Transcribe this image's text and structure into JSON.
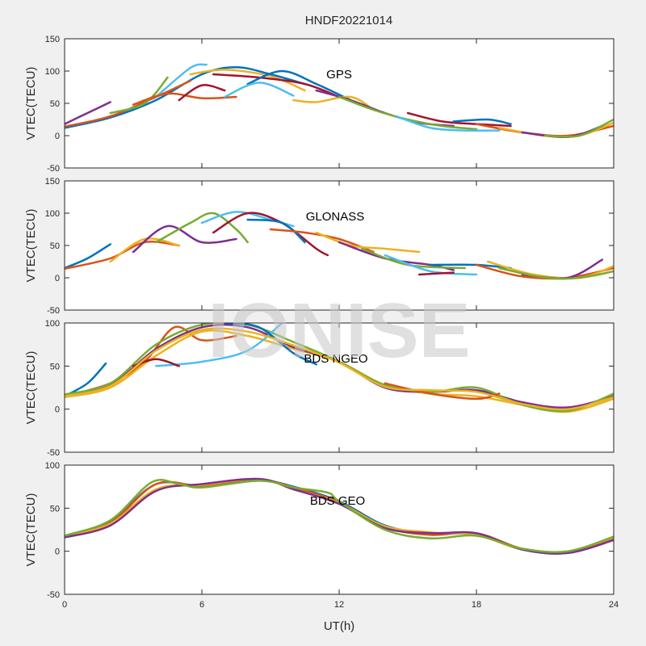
{
  "chart_data": {
    "title": "HNDF20221014",
    "xlabel": "UT(h)",
    "watermark": "IONISE",
    "colors": [
      "#0072bd",
      "#d95319",
      "#edb120",
      "#7e2f8e",
      "#77ac30",
      "#4dbeee",
      "#a2142f"
    ],
    "panels": [
      {
        "type": "line",
        "annotation": "GPS",
        "ylabel": "VTEC(TECU)",
        "xlim": [
          0,
          24
        ],
        "ylim": [
          -50,
          150
        ],
        "xticks": [
          0,
          6,
          12,
          18,
          24
        ],
        "yticks": [
          -50,
          0,
          50,
          100,
          150
        ],
        "series": [
          {
            "x": [
              0,
              2,
              4,
              6,
              7.5,
              9,
              10.5
            ],
            "y": [
              12,
              28,
              55,
              95,
              106,
              95,
              80
            ]
          },
          {
            "x": [
              0,
              2,
              4,
              5.5
            ],
            "y": [
              14,
              30,
              60,
              85
            ]
          },
          {
            "x": [
              5.5,
              7,
              9,
              10.5
            ],
            "y": [
              95,
              102,
              92,
              70
            ]
          },
          {
            "x": [
              0,
              1,
              2
            ],
            "y": [
              18,
              35,
              52
            ]
          },
          {
            "x": [
              2,
              3.5,
              4.5
            ],
            "y": [
              35,
              50,
              90
            ]
          },
          {
            "x": [
              4,
              5.5,
              6.2
            ],
            "y": [
              60,
              105,
              110
            ]
          },
          {
            "x": [
              6.5,
              8.5,
              10.5,
              12
            ],
            "y": [
              95,
              90,
              80,
              60
            ]
          },
          {
            "x": [
              8,
              9.5,
              11,
              12.5
            ],
            "y": [
              80,
              100,
              80,
              55
            ]
          },
          {
            "x": [
              3,
              4.5,
              6,
              7.5
            ],
            "y": [
              48,
              65,
              58,
              60
            ]
          },
          {
            "x": [
              10,
              11,
              12.5,
              13.5
            ],
            "y": [
              55,
              52,
              60,
              40
            ]
          },
          {
            "x": [
              11,
              12.5,
              14,
              15.5,
              17
            ],
            "y": [
              70,
              55,
              35,
              20,
              15
            ]
          },
          {
            "x": [
              12,
              13.5,
              15,
              16.5,
              18
            ],
            "y": [
              60,
              40,
              25,
              15,
              10
            ]
          },
          {
            "x": [
              14.5,
              16,
              17.5,
              19
            ],
            "y": [
              30,
              12,
              8,
              8
            ]
          },
          {
            "x": [
              15,
              16.5,
              18,
              19.5
            ],
            "y": [
              35,
              22,
              18,
              15
            ]
          },
          {
            "x": [
              17,
              18.5,
              19.5
            ],
            "y": [
              22,
              25,
              18
            ]
          },
          {
            "x": [
              18,
              20,
              22,
              24
            ],
            "y": [
              18,
              5,
              0,
              15
            ]
          },
          {
            "x": [
              19,
              21,
              22.5,
              24
            ],
            "y": [
              12,
              0,
              0,
              20
            ]
          },
          {
            "x": [
              20,
              22,
              23.5
            ],
            "y": [
              5,
              -2,
              15
            ]
          },
          {
            "x": [
              21,
              22.5,
              24
            ],
            "y": [
              0,
              0,
              25
            ]
          },
          {
            "x": [
              7,
              8.5,
              10
            ],
            "y": [
              60,
              82,
              62
            ]
          },
          {
            "x": [
              5,
              6,
              7
            ],
            "y": [
              55,
              78,
              70
            ]
          }
        ]
      },
      {
        "type": "line",
        "annotation": "GLONASS",
        "ylabel": "VTEC(TECU)",
        "xlim": [
          0,
          24
        ],
        "ylim": [
          -50,
          150
        ],
        "xticks": [
          0,
          6,
          12,
          18,
          24
        ],
        "yticks": [
          -50,
          0,
          50,
          100,
          150
        ],
        "series": [
          {
            "x": [
              0,
              1,
              2
            ],
            "y": [
              15,
              30,
              52
            ]
          },
          {
            "x": [
              0,
              2,
              3.5,
              5
            ],
            "y": [
              14,
              30,
              55,
              50
            ]
          },
          {
            "x": [
              2,
              3.5,
              5
            ],
            "y": [
              25,
              60,
              50
            ]
          },
          {
            "x": [
              3,
              4.5,
              6,
              7.5
            ],
            "y": [
              40,
              80,
              55,
              60
            ]
          },
          {
            "x": [
              4,
              5.5,
              6.5,
              7.5,
              8
            ],
            "y": [
              55,
              85,
              100,
              75,
              55
            ]
          },
          {
            "x": [
              6,
              7.5,
              9,
              10
            ],
            "y": [
              85,
              102,
              90,
              80
            ]
          },
          {
            "x": [
              6.5,
              8,
              9.5,
              11,
              11.5
            ],
            "y": [
              70,
              100,
              85,
              45,
              35
            ]
          },
          {
            "x": [
              8,
              9.5,
              10.5
            ],
            "y": [
              90,
              85,
              55
            ]
          },
          {
            "x": [
              9,
              10.5,
              12,
              13.5
            ],
            "y": [
              75,
              70,
              60,
              40
            ]
          },
          {
            "x": [
              11,
              12.5,
              14,
              15.5
            ],
            "y": [
              70,
              50,
              45,
              40
            ]
          },
          {
            "x": [
              12,
              14,
              16,
              17
            ],
            "y": [
              55,
              30,
              20,
              12
            ]
          },
          {
            "x": [
              13,
              15,
              17.5
            ],
            "y": [
              45,
              20,
              15
            ]
          },
          {
            "x": [
              14,
              16,
              18
            ],
            "y": [
              35,
              10,
              5
            ]
          },
          {
            "x": [
              15.5,
              17
            ],
            "y": [
              5,
              8
            ]
          },
          {
            "x": [
              16,
              18,
              19.5
            ],
            "y": [
              20,
              20,
              15
            ]
          },
          {
            "x": [
              18,
              20,
              22,
              24
            ],
            "y": [
              20,
              2,
              0,
              15
            ]
          },
          {
            "x": [
              18.5,
              20.5,
              22.5,
              24
            ],
            "y": [
              25,
              5,
              0,
              18
            ]
          },
          {
            "x": [
              20,
              22,
              23.5
            ],
            "y": [
              5,
              0,
              28
            ]
          },
          {
            "x": [
              19,
              21,
              22.5,
              24
            ],
            "y": [
              15,
              0,
              0,
              10
            ]
          }
        ]
      },
      {
        "type": "line",
        "annotation": "BDS NGEO",
        "ylabel": "VTEC(TECU)",
        "xlim": [
          0,
          24
        ],
        "ylim": [
          -50,
          100
        ],
        "xticks": [
          0,
          6,
          12,
          18,
          24
        ],
        "yticks": [
          -50,
          0,
          50,
          100
        ],
        "series": [
          {
            "x": [
              0,
              1,
              1.8
            ],
            "y": [
              15,
              30,
              53
            ]
          },
          {
            "x": [
              0,
              2,
              3.5,
              4.8,
              6,
              7.5
            ],
            "y": [
              15,
              30,
              55,
              95,
              80,
              85
            ]
          },
          {
            "x": [
              0,
              2,
              4,
              6,
              8,
              10,
              12,
              14,
              16,
              18,
              20,
              22,
              24
            ],
            "y": [
              14,
              25,
              62,
              90,
              85,
              70,
              55,
              28,
              18,
              15,
              5,
              -3,
              12
            ]
          },
          {
            "x": [
              0,
              2,
              4,
              6,
              8,
              10,
              12,
              14,
              16,
              18,
              20,
              22,
              24
            ],
            "y": [
              16,
              28,
              70,
              95,
              95,
              72,
              55,
              25,
              20,
              22,
              8,
              2,
              15
            ]
          },
          {
            "x": [
              0,
              2,
              4,
              6,
              8,
              10,
              12,
              14,
              16,
              18,
              20,
              22,
              24
            ],
            "y": [
              17,
              30,
              75,
              98,
              98,
              78,
              55,
              28,
              20,
              25,
              5,
              -2,
              18
            ]
          },
          {
            "x": [
              4,
              6,
              8,
              9.5
            ],
            "y": [
              50,
              55,
              68,
              100
            ]
          },
          {
            "x": [
              3,
              4,
              5
            ],
            "y": [
              50,
              58,
              50
            ]
          },
          {
            "x": [
              7,
              8.5,
              10,
              11
            ],
            "y": [
              100,
              95,
              65,
              52
            ]
          },
          {
            "x": [
              14,
              16,
              18,
              19
            ],
            "y": [
              30,
              18,
              12,
              18
            ]
          },
          {
            "x": [
              0,
              2,
              4,
              6,
              8,
              10,
              12,
              14,
              16,
              18,
              20,
              22,
              24
            ],
            "y": [
              15,
              27,
              68,
              92,
              90,
              74,
              54,
              26,
              22,
              20,
              6,
              0,
              14
            ]
          }
        ]
      },
      {
        "type": "line",
        "annotation": "BDS GEO",
        "ylabel": "VTEC(TECU)",
        "xlim": [
          0,
          24
        ],
        "ylim": [
          -50,
          100
        ],
        "xticks": [
          0,
          6,
          12,
          18,
          24
        ],
        "yticks": [
          -50,
          0,
          50,
          100
        ],
        "xticklabels": [
          "0",
          "6",
          "12",
          "18",
          "24"
        ],
        "series": [
          {
            "x": [
              0,
              2,
              4,
              6,
              8.5,
              10,
              12,
              14,
              16,
              18,
              20,
              22,
              24
            ],
            "y": [
              18,
              35,
              78,
              75,
              82,
              75,
              58,
              30,
              20,
              20,
              2,
              -2,
              15
            ]
          },
          {
            "x": [
              0,
              2,
              4,
              6,
              8.5,
              10,
              12,
              14,
              16,
              18,
              20,
              22,
              24
            ],
            "y": [
              18,
              33,
              78,
              76,
              83,
              74,
              57,
              28,
              19,
              21,
              3,
              -1,
              14
            ]
          },
          {
            "x": [
              0,
              2,
              4,
              6,
              8.5,
              10,
              12,
              14,
              16,
              18,
              20,
              22,
              24
            ],
            "y": [
              17,
              32,
              72,
              77,
              84,
              72,
              56,
              29,
              22,
              19,
              2,
              0,
              16
            ]
          },
          {
            "x": [
              0,
              2,
              4,
              6,
              8.5,
              10,
              12,
              14,
              16,
              18,
              20,
              22,
              24
            ],
            "y": [
              16,
              30,
              70,
              78,
              84,
              72,
              55,
              27,
              21,
              21,
              2,
              -2,
              13
            ]
          },
          {
            "x": [
              0,
              2,
              3.8,
              5,
              6,
              8.5,
              10,
              11.5,
              12,
              14,
              16,
              18,
              20,
              22,
              24
            ],
            "y": [
              18,
              36,
              80,
              78,
              74,
              82,
              74,
              68,
              58,
              25,
              15,
              18,
              3,
              0,
              17
            ]
          }
        ]
      }
    ]
  }
}
